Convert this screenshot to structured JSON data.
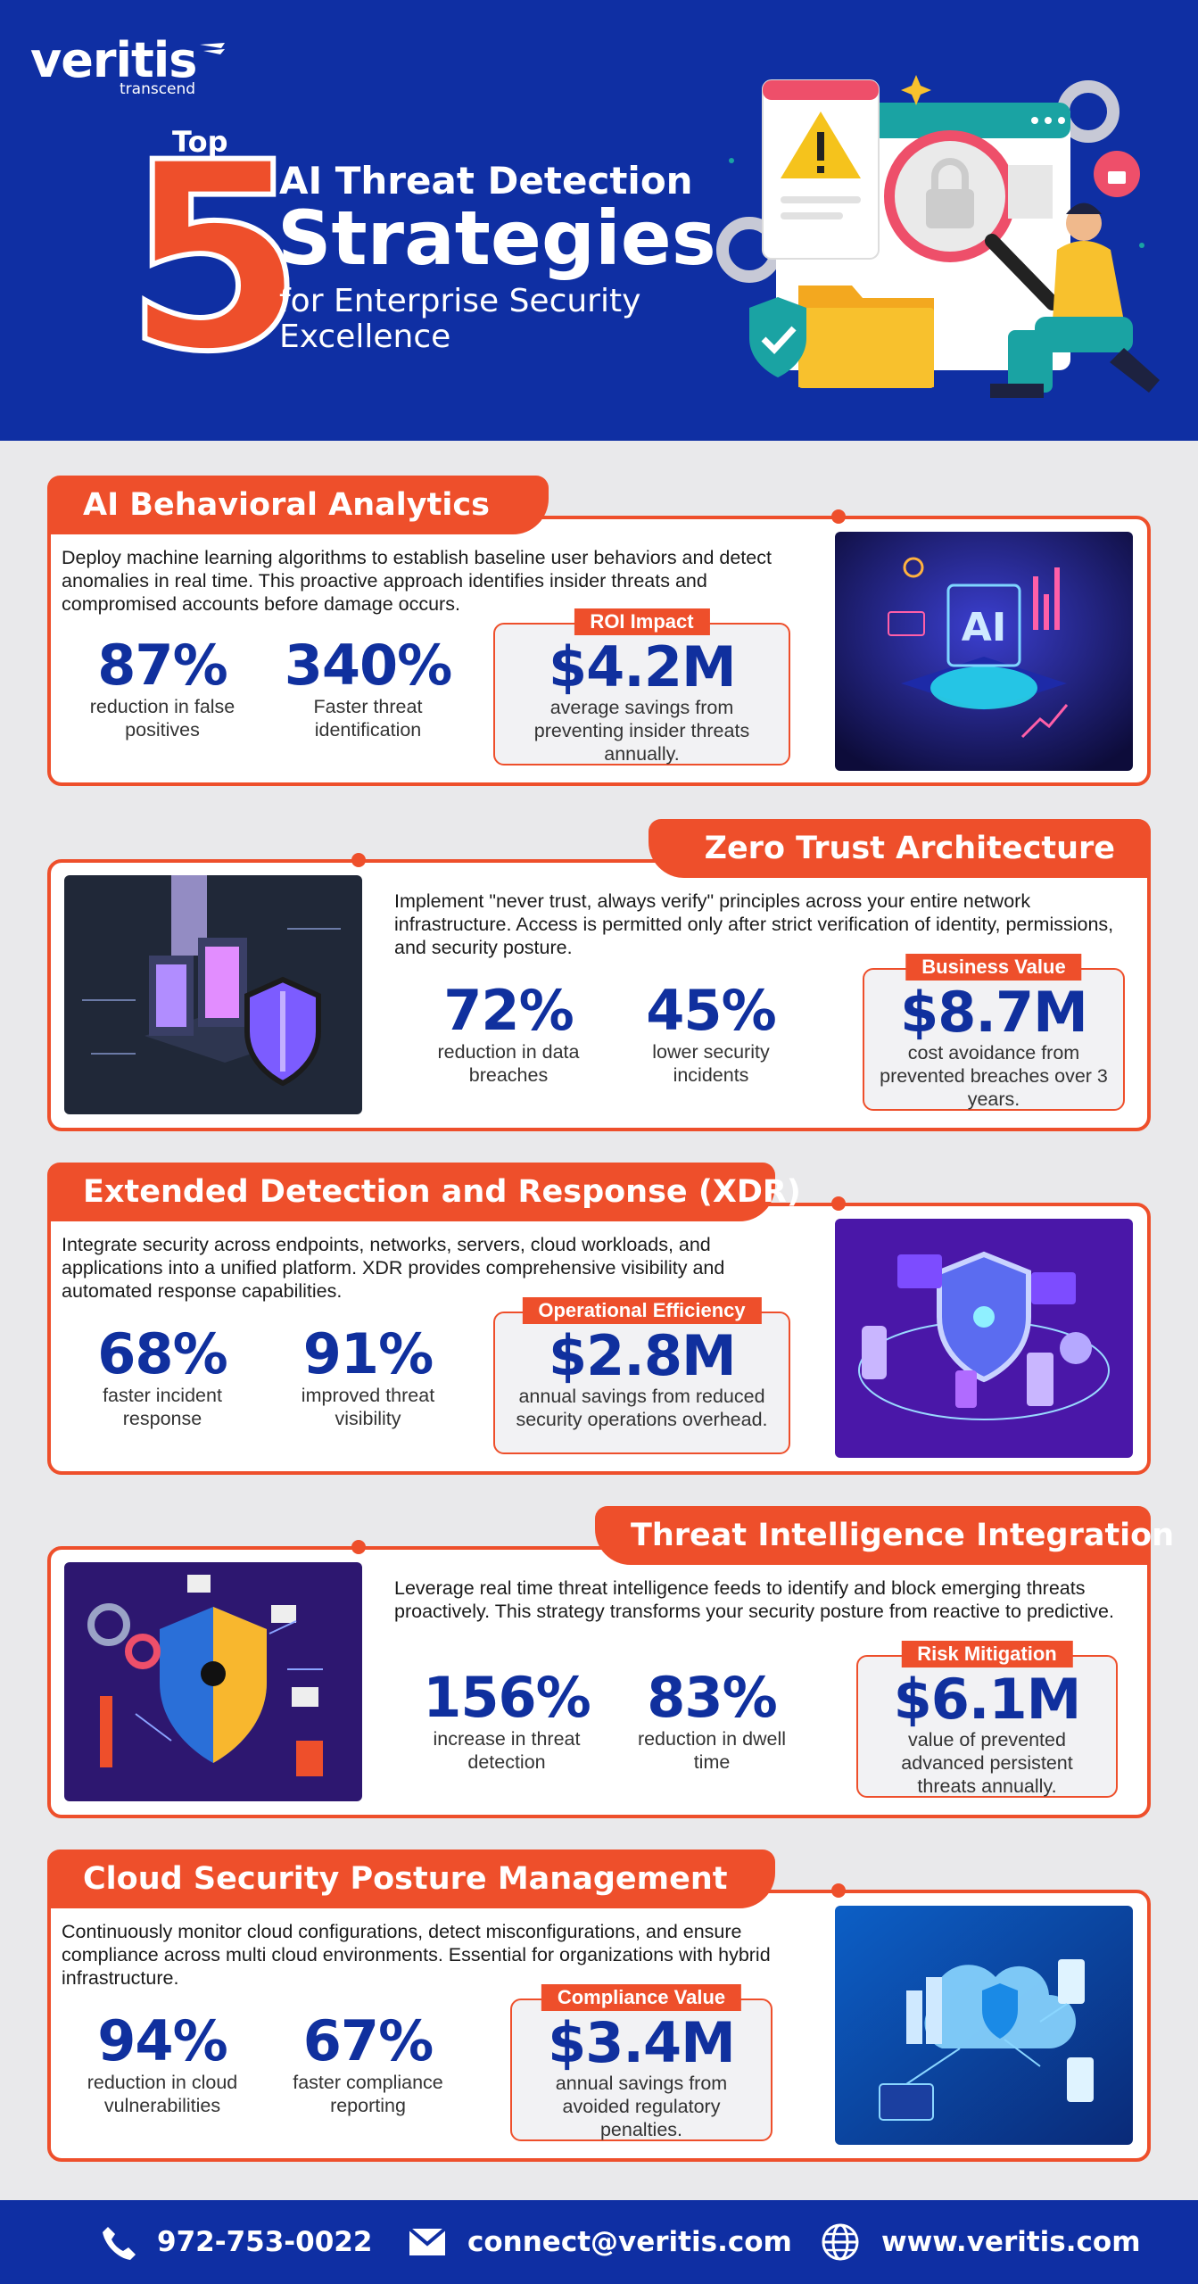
{
  "header": {
    "logo": "veritis",
    "logo_tagline": "transcend",
    "top_label": "Top",
    "number": "5",
    "title_line1": "AI Threat Detection",
    "title_line2": "Strategies",
    "title_line3": "for Enterprise Security Excellence"
  },
  "sections": [
    {
      "title": "AI Behavioral Analytics",
      "description": "Deploy machine learning algorithms to establish baseline user behaviors and detect anomalies in real time. This proactive approach identifies insider threats and compromised accounts before damage occurs.",
      "stats": [
        {
          "value": "87%",
          "label": "reduction in false positives"
        },
        {
          "value": "340%",
          "label": "Faster threat identification"
        }
      ],
      "value_box": {
        "badge": "ROI Impact",
        "value": "$4.2M",
        "label": "average savings from preventing insider threats annually."
      }
    },
    {
      "title": "Zero Trust Architecture",
      "description": "Implement \"never trust, always verify\" principles across your entire network infrastructure. Access is permitted only after strict verification of identity, permissions, and security posture.",
      "stats": [
        {
          "value": "72%",
          "label": "reduction in data breaches"
        },
        {
          "value": "45%",
          "label": "lower security incidents"
        }
      ],
      "value_box": {
        "badge": "Business Value",
        "value": "$8.7M",
        "label": "cost avoidance from prevented breaches over 3 years."
      }
    },
    {
      "title": "Extended Detection and Response (XDR)",
      "description": "Integrate security across endpoints, networks, servers, cloud workloads, and applications into a unified platform. XDR provides comprehensive visibility and automated response capabilities.",
      "stats": [
        {
          "value": "68%",
          "label": "faster incident response"
        },
        {
          "value": "91%",
          "label": "improved threat visibility"
        }
      ],
      "value_box": {
        "badge": "Operational Efficiency",
        "value": "$2.8M",
        "label": "annual savings from reduced security operations overhead."
      }
    },
    {
      "title": "Threat Intelligence Integration",
      "description": "Leverage real time threat intelligence feeds to identify and block emerging threats proactively. This strategy transforms your security posture from reactive to predictive.",
      "stats": [
        {
          "value": "156%",
          "label": "increase in threat detection"
        },
        {
          "value": "83%",
          "label": "reduction in dwell time"
        }
      ],
      "value_box": {
        "badge": "Risk Mitigation",
        "value": "$6.1M",
        "label": "value of prevented advanced persistent threats annually."
      }
    },
    {
      "title": "Cloud Security Posture Management",
      "description": "Continuously monitor cloud configurations, detect misconfigurations, and ensure compliance across multi cloud environments. Essential for organizations with hybrid infrastructure.",
      "stats": [
        {
          "value": "94%",
          "label": "reduction in cloud vulnerabilities"
        },
        {
          "value": "67%",
          "label": "faster compliance reporting"
        }
      ],
      "value_box": {
        "badge": "Compliance Value",
        "value": "$3.4M",
        "label": "annual savings from avoided regulatory penalties."
      }
    }
  ],
  "footer": {
    "phone": "972-753-0022",
    "email": "connect@veritis.com",
    "website": "www.veritis.com"
  },
  "colors": {
    "brand_blue": "#0f2fa3",
    "accent_orange": "#ee4f2b",
    "stat_blue": "#10309e"
  }
}
